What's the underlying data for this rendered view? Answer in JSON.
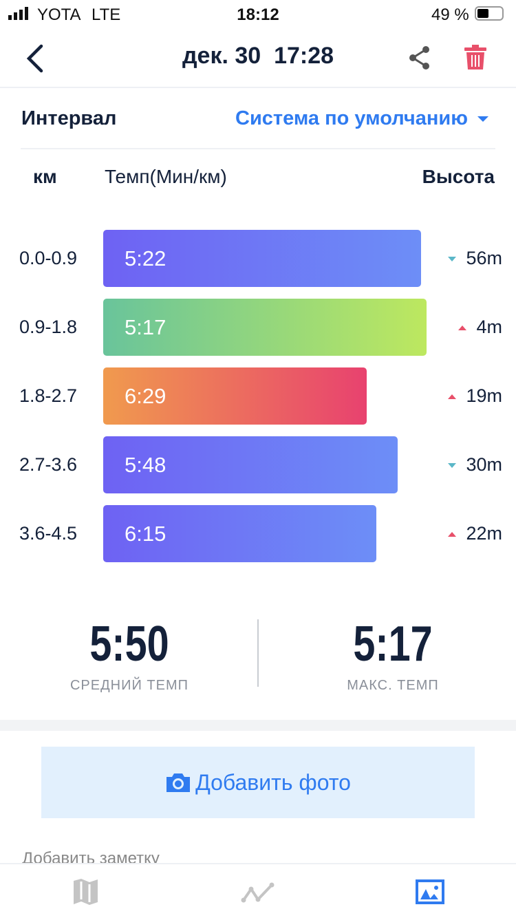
{
  "status_bar": {
    "carrier": "YOTA",
    "network": "LTE",
    "time": "18:12",
    "battery": "49 %",
    "battery_level": 0.49
  },
  "header": {
    "title": "дек. 30  17:28",
    "icons": [
      "back-chevron-icon",
      "share-icon",
      "trash-icon"
    ]
  },
  "interval": {
    "label": "Интервал",
    "selector": "Система по умолчанию"
  },
  "table": {
    "columns": {
      "km": "км",
      "pace": "Темп(Мин/км)",
      "elevation": "Высота"
    },
    "rows": [
      {
        "km": "0.0-0.9",
        "pace": "5:22",
        "elevation": "56m",
        "trend": "down",
        "colors": [
          "#6e62f3",
          "#6d8ef7"
        ]
      },
      {
        "km": "0.9-1.8",
        "pace": "5:17",
        "elevation": "4m",
        "trend": "up",
        "colors": [
          "#69c49b",
          "#bde85f"
        ]
      },
      {
        "km": "1.8-2.7",
        "pace": "6:29",
        "elevation": "19m",
        "trend": "up",
        "colors": [
          "#f09a4e",
          "#e8426f"
        ]
      },
      {
        "km": "2.7-3.6",
        "pace": "5:48",
        "elevation": "30m",
        "trend": "down",
        "colors": [
          "#6e62f3",
          "#6d8ef7"
        ]
      },
      {
        "km": "3.6-4.5",
        "pace": "6:15",
        "elevation": "22m",
        "trend": "up",
        "colors": [
          "#6e62f3",
          "#6d8ef7"
        ]
      }
    ]
  },
  "summary": {
    "avg_value": "5:50",
    "avg_label": "СРЕДНИЙ ТЕМП",
    "max_value": "5:17",
    "max_label": "МАКС. ТЕМП"
  },
  "add_photo": "Добавить фото",
  "add_note": "Добавить заметку",
  "tabs": [
    {
      "icon": "map-icon",
      "active": false
    },
    {
      "icon": "chart-line-icon",
      "active": false
    },
    {
      "icon": "photo-icon",
      "active": true
    }
  ],
  "colors": {
    "accent": "#2f7bf0",
    "delete": "#e8506a"
  }
}
